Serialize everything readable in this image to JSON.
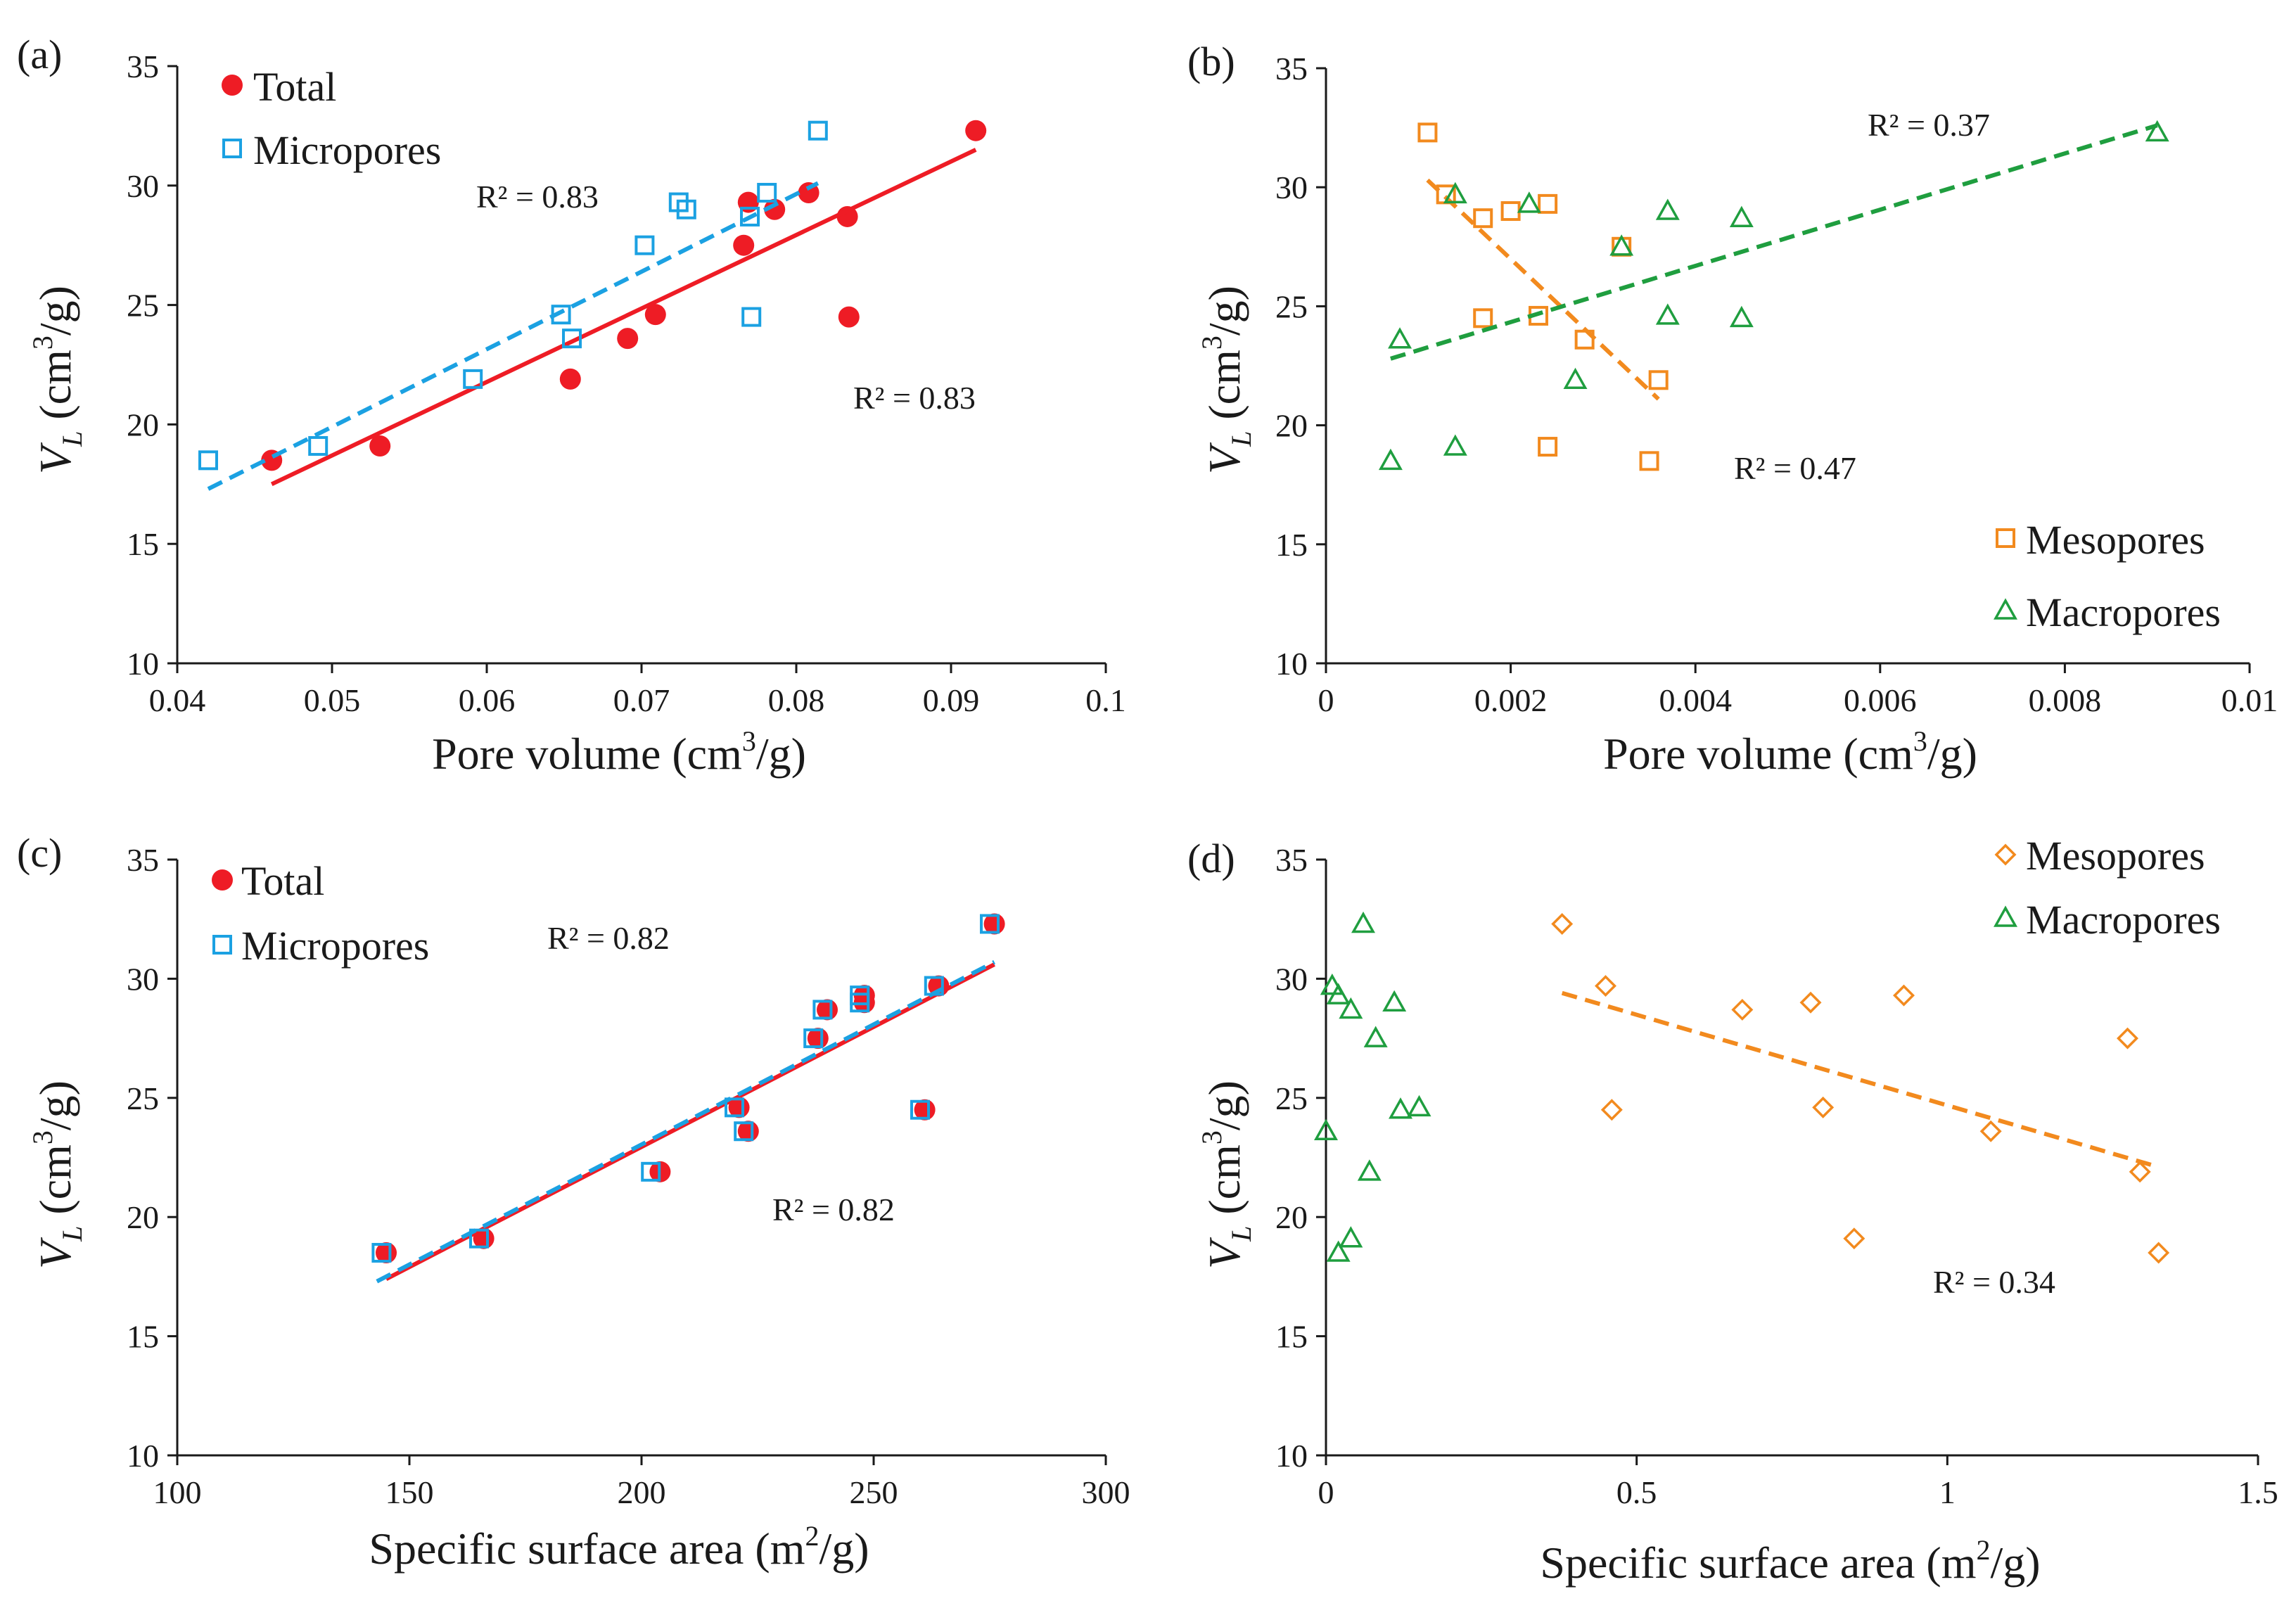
{
  "chart_data": [
    {
      "id": "a",
      "type": "scatter",
      "panel_label": "(a)",
      "xlabel": "Pore volume (cm³/g)",
      "ylabel": "VL (cm³/g)",
      "xlim": [
        0.04,
        0.1
      ],
      "ylim": [
        10,
        35
      ],
      "xticks": [
        0.04,
        0.05,
        0.06,
        0.07,
        0.08,
        0.09,
        0.1
      ],
      "yticks": [
        10,
        15,
        20,
        25,
        30,
        35
      ],
      "xtick_labels": [
        "0.04",
        "0.05",
        "0.06",
        "0.07",
        "0.08",
        "0.09",
        "0.1"
      ],
      "ytick_labels": [
        "10",
        "15",
        "20",
        "25",
        "30",
        "35"
      ],
      "legend_position": "top-left",
      "series": [
        {
          "name": "Total",
          "marker": "filled-circle",
          "color": "#ee1c25",
          "x": [
            0.0461,
            0.0531,
            0.0654,
            0.0691,
            0.0709,
            0.0766,
            0.0769,
            0.0786,
            0.0808,
            0.0833,
            0.0834,
            0.0916
          ],
          "y": [
            18.5,
            19.1,
            21.9,
            23.6,
            24.6,
            27.5,
            29.3,
            29.0,
            29.7,
            28.7,
            24.5,
            32.3
          ],
          "trend": {
            "x": [
              0.0461,
              0.0916
            ],
            "y": [
              17.5,
              31.5
            ],
            "style": "solid",
            "r2": "R² = 0.83"
          }
        },
        {
          "name": "Micropores",
          "marker": "open-square",
          "color": "#1ba1e2",
          "x": [
            0.042,
            0.0491,
            0.0591,
            0.0648,
            0.0655,
            0.0702,
            0.0724,
            0.0729,
            0.077,
            0.0771,
            0.0781,
            0.0814
          ],
          "y": [
            18.5,
            19.1,
            21.9,
            24.6,
            23.6,
            27.5,
            29.3,
            29.0,
            28.7,
            24.5,
            29.7,
            32.3
          ],
          "trend": {
            "x": [
              0.042,
              0.0814
            ],
            "y": [
              17.3,
              30.1
            ],
            "style": "dashed",
            "r2": "R² = 0.83"
          }
        }
      ]
    },
    {
      "id": "b",
      "type": "scatter",
      "panel_label": "(b)",
      "xlabel": "Pore volume (cm³/g)",
      "ylabel": "VL (cm³/g)",
      "xlim": [
        0,
        0.01
      ],
      "ylim": [
        10,
        35
      ],
      "xticks": [
        0,
        0.002,
        0.004,
        0.006,
        0.008,
        0.01
      ],
      "yticks": [
        10,
        15,
        20,
        25,
        30,
        35
      ],
      "xtick_labels": [
        "0",
        "0.002",
        "0.004",
        "0.006",
        "0.008",
        "0.01"
      ],
      "ytick_labels": [
        "10",
        "15",
        "20",
        "25",
        "30",
        "35"
      ],
      "legend_position": "bottom-right",
      "series": [
        {
          "name": "Mesopores",
          "marker": "open-square",
          "color": "#f28a1e",
          "x": [
            0.0011,
            0.0013,
            0.0017,
            0.0017,
            0.002,
            0.0023,
            0.0024,
            0.0024,
            0.0028,
            0.0032,
            0.0035,
            0.0036
          ],
          "y": [
            32.3,
            29.7,
            28.7,
            24.5,
            29.0,
            24.6,
            29.3,
            19.1,
            23.6,
            27.5,
            18.5,
            21.9
          ],
          "trend": {
            "x": [
              0.0011,
              0.0036
            ],
            "y": [
              30.3,
              21.1
            ],
            "style": "dashed",
            "r2": "R² = 0.47"
          }
        },
        {
          "name": "Macropores",
          "marker": "open-triangle",
          "color": "#1f9e3f",
          "x": [
            0.0007,
            0.0008,
            0.0014,
            0.0014,
            0.0022,
            0.0027,
            0.0032,
            0.0037,
            0.0037,
            0.0045,
            0.0045,
            0.009
          ],
          "y": [
            18.5,
            23.6,
            19.1,
            29.7,
            29.3,
            21.9,
            27.5,
            29.0,
            24.6,
            28.7,
            24.5,
            32.3
          ],
          "trend": {
            "x": [
              0.0007,
              0.009
            ],
            "y": [
              22.8,
              32.6
            ],
            "style": "dashed",
            "r2": "R² = 0.37"
          }
        }
      ]
    },
    {
      "id": "c",
      "type": "scatter",
      "panel_label": "(c)",
      "xlabel": "Specific surface area (m²/g)",
      "ylabel": "VL (cm³/g)",
      "xlim": [
        100,
        300
      ],
      "ylim": [
        10,
        35
      ],
      "xticks": [
        100,
        150,
        200,
        250,
        300
      ],
      "yticks": [
        10,
        15,
        20,
        25,
        30,
        35
      ],
      "xtick_labels": [
        "100",
        "150",
        "200",
        "250",
        "300"
      ],
      "ytick_labels": [
        "10",
        "15",
        "20",
        "25",
        "30",
        "35"
      ],
      "legend_position": "top-left",
      "series": [
        {
          "name": "Total",
          "marker": "filled-circle",
          "color": "#ee1c25",
          "x": [
            145,
            166,
            204,
            221,
            223,
            238,
            240,
            248,
            248,
            261,
            264,
            276
          ],
          "y": [
            18.5,
            19.1,
            21.9,
            24.6,
            23.6,
            27.5,
            28.7,
            29.3,
            29.0,
            24.5,
            29.7,
            32.3
          ],
          "trend": {
            "x": [
              145,
              276
            ],
            "y": [
              17.4,
              30.6
            ],
            "style": "solid",
            "r2": "R² = 0.82"
          }
        },
        {
          "name": "Micropores",
          "marker": "open-square",
          "color": "#1ba1e2",
          "x": [
            144,
            165,
            202,
            220,
            222,
            237,
            239,
            247,
            247,
            260,
            263,
            275
          ],
          "y": [
            18.5,
            19.1,
            21.9,
            24.6,
            23.6,
            27.5,
            28.7,
            29.3,
            29.0,
            24.5,
            29.7,
            32.3
          ],
          "trend": {
            "x": [
              143,
              276
            ],
            "y": [
              17.3,
              30.7
            ],
            "style": "dashed",
            "r2": "R² = 0.82"
          }
        }
      ]
    },
    {
      "id": "d",
      "type": "scatter",
      "panel_label": "(d)",
      "xlabel": "Specific surface area (m²/g)",
      "ylabel": "VL (cm³/g)",
      "xlim": [
        0,
        1.5
      ],
      "ylim": [
        10,
        35
      ],
      "xticks": [
        0,
        0.5,
        1,
        1.5
      ],
      "yticks": [
        10,
        15,
        20,
        25,
        30,
        35
      ],
      "xtick_labels": [
        "0",
        "0.5",
        "1",
        "1.5"
      ],
      "ytick_labels": [
        "10",
        "15",
        "20",
        "25",
        "30",
        "35"
      ],
      "legend_position": "top-right",
      "series": [
        {
          "name": "Mesopores",
          "marker": "open-diamond",
          "color": "#f28a1e",
          "x": [
            0.38,
            0.45,
            0.46,
            0.67,
            0.78,
            0.8,
            0.85,
            0.93,
            1.07,
            1.29,
            1.31,
            1.34
          ],
          "y": [
            32.3,
            29.7,
            24.5,
            28.7,
            29.0,
            24.6,
            19.1,
            29.3,
            23.6,
            27.5,
            21.9,
            18.5
          ],
          "trend": {
            "x": [
              0.38,
              1.34
            ],
            "y": [
              29.4,
              22.1
            ],
            "style": "dashed",
            "r2": "R² = 0.34"
          }
        },
        {
          "name": "Macropores",
          "marker": "open-triangle",
          "color": "#1f9e3f",
          "x": [
            0.0,
            0.01,
            0.02,
            0.02,
            0.04,
            0.04,
            0.06,
            0.07,
            0.08,
            0.11,
            0.12,
            0.15
          ],
          "y": [
            23.6,
            29.7,
            29.3,
            18.5,
            28.7,
            19.1,
            32.3,
            21.9,
            27.5,
            29.0,
            24.5,
            24.6
          ]
        }
      ]
    }
  ]
}
